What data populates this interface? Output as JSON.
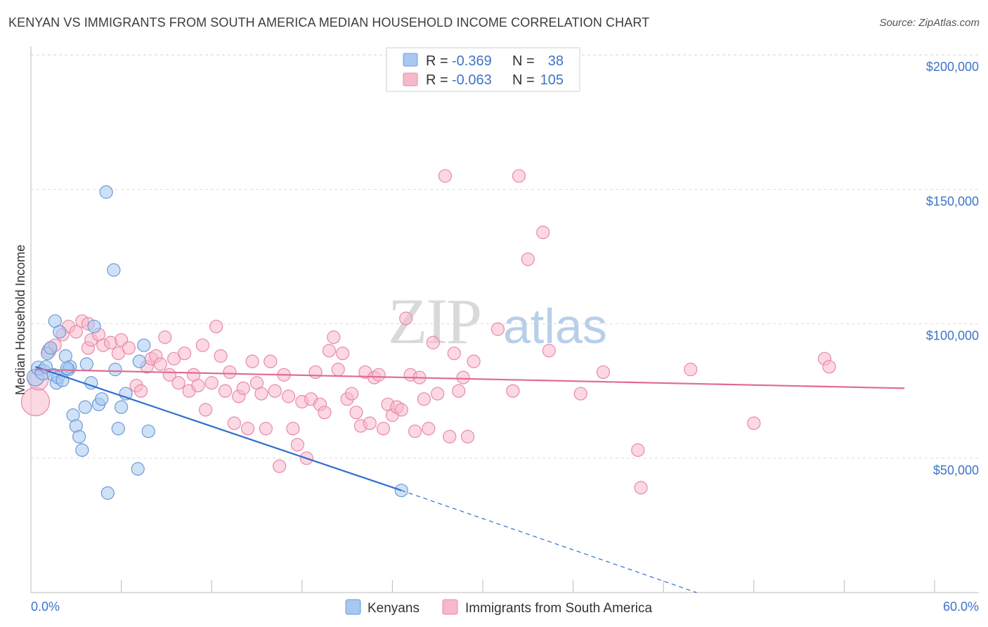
{
  "header": {
    "title": "KENYAN VS IMMIGRANTS FROM SOUTH AMERICA MEDIAN HOUSEHOLD INCOME CORRELATION CHART",
    "source": "Source: ZipAtlas.com"
  },
  "watermark": {
    "zip": "ZIP",
    "atlas": "atlas"
  },
  "colors": {
    "blue_fill": "#a8c8f0",
    "blue_stroke": "#6b9bd8",
    "blue_line": "#2f6fcf",
    "pink_fill": "#f7b8cb",
    "pink_stroke": "#e88aa8",
    "pink_line": "#e06b95",
    "grid": "#dcdcdc",
    "tick_text": "#3d74c8"
  },
  "legend": {
    "rows": [
      {
        "r_label": "R =",
        "r_value": "-0.369",
        "n_label": "N =",
        "n_value": "38"
      },
      {
        "r_label": "R =",
        "r_value": "-0.063",
        "n_label": "N =",
        "n_value": "105"
      }
    ]
  },
  "bottom_legend": {
    "kenyans": "Kenyans",
    "immigrants": "Immigrants from South America"
  },
  "chart_data": {
    "type": "scatter",
    "title": "KENYAN VS IMMIGRANTS FROM SOUTH AMERICA MEDIAN HOUSEHOLD INCOME CORRELATION CHART",
    "xlabel": "",
    "ylabel": "Median Household Income",
    "xlim": [
      0,
      60
    ],
    "ylim": [
      0,
      210000
    ],
    "x_tick_labels": {
      "min": "0.0%",
      "max": "60.0%"
    },
    "y_ticks": [
      {
        "value": 50000,
        "label": "$50,000"
      },
      {
        "value": 100000,
        "label": "$100,000"
      },
      {
        "value": 150000,
        "label": "$150,000"
      },
      {
        "value": 200000,
        "label": "$200,000"
      }
    ],
    "series": [
      {
        "name": "Kenyans",
        "r": -0.369,
        "n": 38,
        "trend": {
          "x0": 0.3,
          "y0": 84000,
          "x1": 24.6,
          "y1": 38000,
          "dash_to_x": 44.2,
          "dash_to_y": 0
        },
        "points": [
          [
            0.3,
            80000,
            12
          ],
          [
            0.5,
            83500,
            10
          ],
          [
            0.8,
            82000,
            11
          ],
          [
            1.0,
            84000,
            9
          ],
          [
            1.1,
            89000,
            9
          ],
          [
            1.3,
            91000,
            9
          ],
          [
            1.5,
            81000,
            9
          ],
          [
            1.6,
            101000,
            9
          ],
          [
            1.7,
            78000,
            9
          ],
          [
            1.8,
            80000,
            9
          ],
          [
            1.9,
            97000,
            9
          ],
          [
            2.1,
            79000,
            9
          ],
          [
            2.3,
            88000,
            9
          ],
          [
            2.5,
            83000,
            9
          ],
          [
            2.6,
            84000,
            9
          ],
          [
            2.8,
            66000,
            9
          ],
          [
            3.0,
            62000,
            9
          ],
          [
            3.2,
            58000,
            9
          ],
          [
            3.4,
            53000,
            9
          ],
          [
            3.6,
            69000,
            9
          ],
          [
            3.7,
            85000,
            9
          ],
          [
            4.0,
            78000,
            9
          ],
          [
            4.2,
            99000,
            9
          ],
          [
            4.5,
            70000,
            9
          ],
          [
            4.7,
            72000,
            9
          ],
          [
            5.0,
            149000,
            9
          ],
          [
            5.1,
            37000,
            9
          ],
          [
            5.5,
            120000,
            9
          ],
          [
            5.6,
            83000,
            9
          ],
          [
            5.8,
            61000,
            9
          ],
          [
            6.0,
            69000,
            9
          ],
          [
            6.3,
            74000,
            9
          ],
          [
            7.1,
            46000,
            9
          ],
          [
            7.2,
            86000,
            9
          ],
          [
            7.5,
            92000,
            9
          ],
          [
            7.8,
            60000,
            9
          ],
          [
            24.6,
            38000,
            9
          ],
          [
            2.4,
            83500,
            9
          ]
        ]
      },
      {
        "name": "Immigrants from South America",
        "r": -0.063,
        "n": 105,
        "trend": {
          "x0": 0.3,
          "y0": 83000,
          "x1": 58.0,
          "y1": 76000
        },
        "points": [
          [
            0.3,
            71000,
            20
          ],
          [
            0.5,
            79000,
            14
          ],
          [
            1.2,
            90000,
            10
          ],
          [
            1.6,
            92000,
            9
          ],
          [
            2.1,
            96000,
            9
          ],
          [
            2.5,
            99000,
            9
          ],
          [
            3.0,
            97000,
            9
          ],
          [
            3.4,
            101000,
            9
          ],
          [
            3.8,
            91000,
            9
          ],
          [
            4.0,
            94000,
            9
          ],
          [
            4.5,
            96000,
            9
          ],
          [
            4.8,
            92000,
            9
          ],
          [
            5.3,
            93000,
            9
          ],
          [
            5.8,
            89000,
            9
          ],
          [
            6.0,
            94000,
            9
          ],
          [
            6.5,
            91000,
            9
          ],
          [
            7.0,
            77000,
            9
          ],
          [
            7.3,
            75000,
            9
          ],
          [
            7.7,
            84000,
            9
          ],
          [
            8.0,
            87000,
            9
          ],
          [
            8.3,
            88000,
            9
          ],
          [
            8.6,
            85000,
            9
          ],
          [
            8.9,
            95000,
            9
          ],
          [
            9.2,
            81000,
            9
          ],
          [
            9.5,
            87000,
            9
          ],
          [
            9.8,
            78000,
            9
          ],
          [
            10.2,
            89000,
            9
          ],
          [
            10.5,
            75000,
            9
          ],
          [
            10.8,
            81000,
            9
          ],
          [
            11.1,
            77000,
            9
          ],
          [
            11.4,
            92000,
            9
          ],
          [
            11.6,
            68000,
            9
          ],
          [
            12.0,
            78000,
            9
          ],
          [
            12.3,
            99000,
            9
          ],
          [
            12.6,
            88000,
            9
          ],
          [
            12.9,
            75000,
            9
          ],
          [
            13.2,
            82000,
            9
          ],
          [
            13.5,
            63000,
            9
          ],
          [
            13.8,
            73000,
            9
          ],
          [
            14.1,
            76000,
            9
          ],
          [
            14.4,
            61000,
            9
          ],
          [
            14.7,
            86000,
            9
          ],
          [
            15.0,
            78000,
            9
          ],
          [
            15.3,
            74000,
            9
          ],
          [
            15.6,
            61000,
            9
          ],
          [
            15.9,
            86000,
            9
          ],
          [
            16.2,
            75000,
            9
          ],
          [
            16.5,
            47000,
            9
          ],
          [
            16.8,
            81000,
            9
          ],
          [
            17.1,
            73000,
            9
          ],
          [
            17.4,
            61000,
            9
          ],
          [
            17.7,
            55000,
            9
          ],
          [
            18.0,
            71000,
            9
          ],
          [
            18.3,
            50000,
            9
          ],
          [
            18.6,
            72000,
            9
          ],
          [
            18.9,
            82000,
            9
          ],
          [
            19.2,
            70000,
            9
          ],
          [
            19.5,
            67000,
            9
          ],
          [
            19.8,
            90000,
            9
          ],
          [
            20.1,
            95000,
            9
          ],
          [
            20.4,
            83000,
            9
          ],
          [
            20.7,
            89000,
            9
          ],
          [
            21.0,
            72000,
            9
          ],
          [
            21.3,
            74000,
            9
          ],
          [
            21.6,
            67000,
            9
          ],
          [
            21.9,
            62000,
            9
          ],
          [
            22.2,
            82000,
            9
          ],
          [
            22.5,
            63000,
            9
          ],
          [
            22.8,
            80000,
            9
          ],
          [
            23.1,
            81000,
            9
          ],
          [
            23.4,
            61000,
            9
          ],
          [
            23.7,
            70000,
            9
          ],
          [
            24.0,
            66000,
            9
          ],
          [
            24.3,
            69000,
            9
          ],
          [
            24.6,
            68000,
            9
          ],
          [
            24.9,
            102000,
            9
          ],
          [
            25.2,
            81000,
            9
          ],
          [
            25.5,
            60000,
            9
          ],
          [
            25.8,
            80000,
            9
          ],
          [
            26.1,
            72000,
            9
          ],
          [
            26.4,
            61000,
            9
          ],
          [
            26.7,
            93000,
            9
          ],
          [
            27.0,
            74000,
            9
          ],
          [
            27.5,
            155000,
            9
          ],
          [
            27.8,
            58000,
            9
          ],
          [
            28.1,
            89000,
            9
          ],
          [
            28.4,
            75000,
            9
          ],
          [
            28.7,
            80000,
            9
          ],
          [
            29.0,
            58000,
            9
          ],
          [
            29.4,
            86000,
            9
          ],
          [
            31.0,
            98000,
            9
          ],
          [
            32.0,
            75000,
            9
          ],
          [
            32.4,
            155000,
            9
          ],
          [
            33.0,
            124000,
            9
          ],
          [
            34.0,
            134000,
            9
          ],
          [
            34.4,
            90000,
            9
          ],
          [
            36.5,
            74000,
            9
          ],
          [
            38.0,
            82000,
            9
          ],
          [
            40.3,
            53000,
            9
          ],
          [
            40.5,
            39000,
            9
          ],
          [
            43.8,
            83000,
            9
          ],
          [
            48.0,
            63000,
            9
          ],
          [
            52.7,
            87000,
            9
          ],
          [
            53.0,
            84000,
            9
          ],
          [
            3.8,
            100000,
            9
          ]
        ]
      }
    ]
  }
}
